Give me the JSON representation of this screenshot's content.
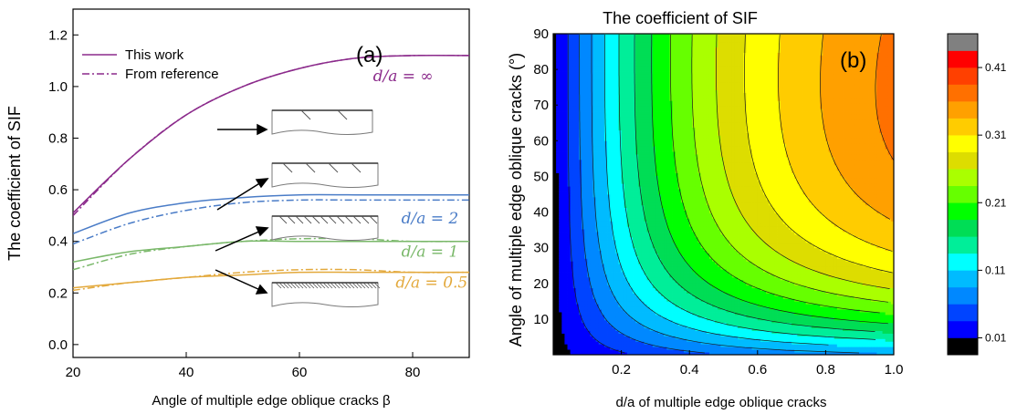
{
  "chart_data": [
    {
      "type": "line",
      "panel_label": "(a)",
      "xlabel": "Angle of multiple edge oblique cracks β",
      "ylabel": "The coefficient of SIF",
      "xlim": [
        20,
        90
      ],
      "ylim": [
        -0.05,
        1.3
      ],
      "xticks": [
        20,
        40,
        60,
        80
      ],
      "yticks": [
        0.0,
        0.2,
        0.4,
        0.6,
        0.8,
        1.0,
        1.2
      ],
      "legend": {
        "position": "top-left",
        "entries": [
          {
            "label": "This work",
            "style": "solid"
          },
          {
            "label": "From reference",
            "style": "dashdot"
          }
        ]
      },
      "x": [
        20,
        30,
        40,
        50,
        60,
        70,
        80,
        90
      ],
      "series": [
        {
          "group": "d/a = ∞",
          "source": "This work",
          "color": "#8b2a8b",
          "values": [
            0.51,
            0.72,
            0.89,
            1.0,
            1.07,
            1.11,
            1.12,
            1.12
          ]
        },
        {
          "group": "d/a = ∞",
          "source": "From reference",
          "color": "#8b2a8b",
          "values": [
            0.5,
            0.72,
            0.89,
            1.0,
            1.07,
            1.11,
            1.12,
            1.12
          ]
        },
        {
          "group": "d/a = 2",
          "source": "This work",
          "color": "#4a7cc7",
          "values": [
            0.43,
            0.51,
            0.55,
            0.57,
            0.58,
            0.58,
            0.58,
            0.58
          ]
        },
        {
          "group": "d/a = 2",
          "source": "From reference",
          "color": "#4a7cc7",
          "values": [
            0.39,
            0.47,
            0.52,
            0.55,
            0.56,
            0.56,
            0.56,
            0.56
          ]
        },
        {
          "group": "d/a = 1",
          "source": "This work",
          "color": "#7ab86a",
          "values": [
            0.32,
            0.36,
            0.38,
            0.4,
            0.4,
            0.4,
            0.4,
            0.4
          ]
        },
        {
          "group": "d/a = 1",
          "source": "From reference",
          "color": "#7ab86a",
          "values": [
            0.29,
            0.35,
            0.38,
            0.4,
            0.41,
            0.41,
            0.4,
            0.4
          ]
        },
        {
          "group": "d/a = 0.5",
          "source": "This work",
          "color": "#e3a93c",
          "values": [
            0.22,
            0.24,
            0.26,
            0.27,
            0.28,
            0.28,
            0.28,
            0.28
          ]
        },
        {
          "group": "d/a = 0.5",
          "source": "From reference",
          "color": "#e3a93c",
          "values": [
            0.21,
            0.24,
            0.26,
            0.28,
            0.29,
            0.29,
            0.28,
            0.28
          ]
        }
      ],
      "annotations": [
        {
          "text": "d/a = ∞",
          "color": "#8b2a8b",
          "x": 73,
          "y": 1.02
        },
        {
          "text": "d/a = 2",
          "color": "#4a7cc7",
          "x": 78,
          "y": 0.47
        },
        {
          "text": "d/a = 1",
          "color": "#7ab86a",
          "x": 78,
          "y": 0.34
        },
        {
          "text": "d/a = 0.5",
          "color": "#e3a93c",
          "x": 77,
          "y": 0.22
        }
      ]
    },
    {
      "type": "heatmap",
      "title": "The coefficient of SIF",
      "panel_label": "(b)",
      "xlabel": "d/a of multiple edge oblique cracks",
      "ylabel": "Angle of multiple edge oblique cracks (°)",
      "xlim": [
        0,
        1.0
      ],
      "ylim": [
        0,
        90
      ],
      "xticks": [
        0.2,
        0.4,
        0.6,
        0.8,
        1.0
      ],
      "yticks": [
        10,
        20,
        30,
        40,
        50,
        60,
        70,
        80,
        90
      ],
      "contour_levels": [
        0.01,
        0.035,
        0.06,
        0.085,
        0.11,
        0.135,
        0.16,
        0.185,
        0.21,
        0.235,
        0.26,
        0.285,
        0.31,
        0.335,
        0.36,
        0.385,
        0.41,
        0.435
      ],
      "colorbar": {
        "tick_labels": [
          "0.01",
          "0.11",
          "0.21",
          "0.31",
          "0.41"
        ],
        "tick_values": [
          0.01,
          0.11,
          0.21,
          0.31,
          0.41
        ],
        "colors": [
          "#000000",
          "#0000ff",
          "#0044ff",
          "#0088ff",
          "#00bbff",
          "#00ffff",
          "#00ee99",
          "#00dd55",
          "#00ff00",
          "#66ff00",
          "#aaff00",
          "#dddd00",
          "#ffff00",
          "#ffcc00",
          "#ffa000",
          "#ff7000",
          "#ff4000",
          "#ff0000",
          "#808080"
        ]
      }
    }
  ]
}
